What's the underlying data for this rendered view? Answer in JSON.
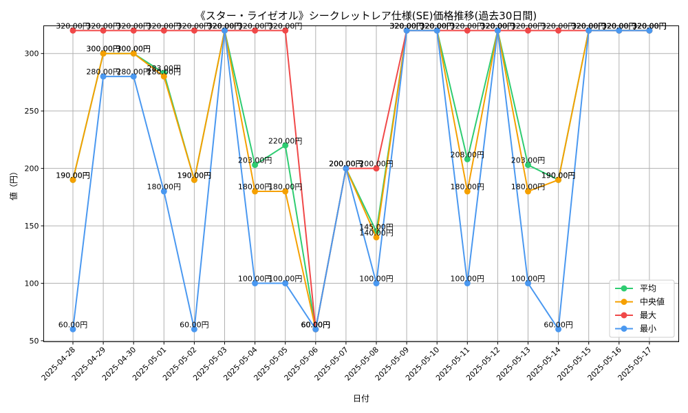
{
  "chart_data": {
    "type": "line",
    "title": "《スター・ライゼオル》シークレットレア仕様(SE)価格推移(過去30日間)",
    "xlabel": "日付",
    "ylabel": "値（円）",
    "ylim": [
      50,
      325
    ],
    "yticks": [
      50,
      100,
      150,
      200,
      250,
      300
    ],
    "grid": true,
    "legend_position": "bottom-right",
    "categories": [
      "2025-04-28",
      "2025-04-29",
      "2025-04-30",
      "2025-05-01",
      "2025-05-02",
      "2025-05-03",
      "2025-05-04",
      "2025-05-05",
      "2025-05-06",
      "2025-05-07",
      "2025-05-08",
      "2025-05-09",
      "2025-05-10",
      "2025-05-11",
      "2025-05-12",
      "2025-05-13",
      "2025-05-14",
      "2025-05-15",
      "2025-05-16",
      "2025-05-17"
    ],
    "value_suffix": "円",
    "series": [
      {
        "name": "平均",
        "color": "#2ecc71",
        "values": [
          190,
          300,
          300,
          283,
          190,
          320,
          203,
          220,
          60,
          200,
          145,
          320,
          320,
          208,
          320,
          203,
          190,
          320,
          320,
          320
        ]
      },
      {
        "name": "中央値",
        "color": "#f5a000",
        "values": [
          190,
          300,
          300,
          280,
          190,
          320,
          180,
          180,
          60,
          200,
          140,
          320,
          320,
          180,
          320,
          180,
          190,
          320,
          320,
          320
        ]
      },
      {
        "name": "最大",
        "color": "#f04848",
        "values": [
          320,
          320,
          320,
          320,
          320,
          320,
          320,
          320,
          60,
          200,
          200,
          320,
          320,
          320,
          320,
          320,
          320,
          320,
          320,
          320
        ]
      },
      {
        "name": "最小",
        "color": "#4a98f0",
        "values": [
          60,
          280,
          280,
          180,
          60,
          320,
          100,
          100,
          60,
          200,
          100,
          320,
          320,
          100,
          320,
          100,
          60,
          320,
          320,
          320
        ]
      }
    ]
  }
}
